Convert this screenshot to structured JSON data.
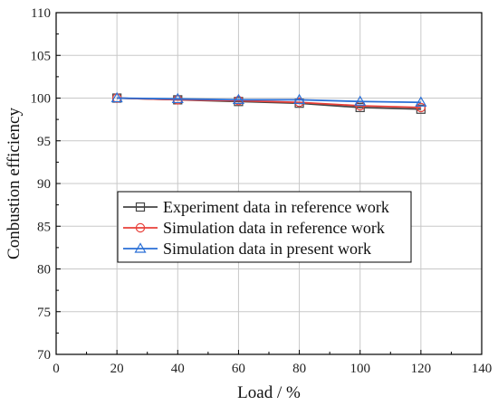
{
  "chart_data": {
    "type": "line",
    "title": "",
    "xlabel": "Load / %",
    "ylabel": "Conbustion efficiency",
    "xlim": [
      0,
      140
    ],
    "ylim": [
      70,
      110
    ],
    "x_ticks": [
      0,
      20,
      40,
      60,
      80,
      100,
      120,
      140
    ],
    "y_ticks": [
      70,
      75,
      80,
      85,
      90,
      95,
      100,
      105,
      110
    ],
    "grid": true,
    "legend_position": "center-left",
    "series": [
      {
        "name": "Experiment data in reference work",
        "color": "#444444",
        "marker": "square",
        "x": [
          20,
          40,
          60,
          80,
          100,
          120
        ],
        "y": [
          100.0,
          99.8,
          99.6,
          99.4,
          98.9,
          98.7
        ]
      },
      {
        "name": "Simulation data in reference work",
        "color": "#e8403a",
        "marker": "circle",
        "x": [
          20,
          40,
          60,
          80,
          100,
          120
        ],
        "y": [
          100.0,
          99.8,
          99.7,
          99.5,
          99.1,
          98.9
        ]
      },
      {
        "name": "Simulation data in present work",
        "color": "#2a6fd6",
        "marker": "triangle",
        "x": [
          20,
          40,
          60,
          80,
          100,
          120
        ],
        "y": [
          100.0,
          99.9,
          99.8,
          99.8,
          99.6,
          99.5
        ]
      }
    ]
  }
}
